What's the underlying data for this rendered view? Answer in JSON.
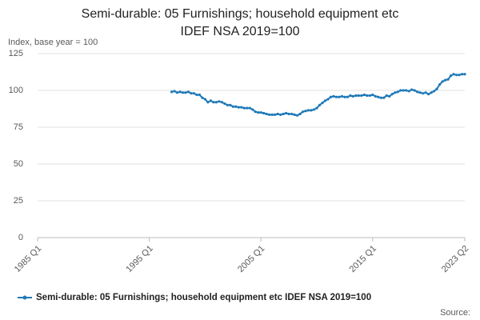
{
  "chart_data": {
    "type": "line",
    "title": [
      "Semi-durable: 05 Furnishings; household equipment etc",
      "IDEF NSA 2019=100"
    ],
    "y_label": "Index, base year = 100",
    "source": "Source:",
    "categories": [
      "1985 Q1",
      null,
      null,
      null,
      null,
      null,
      null,
      null,
      null,
      null,
      null,
      null,
      null,
      null,
      null,
      null,
      null,
      null,
      null,
      null,
      null,
      null,
      null,
      null,
      null,
      null,
      null,
      null,
      null,
      null,
      null,
      null,
      null,
      null,
      null,
      null,
      null,
      null,
      null,
      null,
      "1995 Q1",
      null,
      null,
      null,
      null,
      null,
      null,
      null,
      null,
      null,
      null,
      null,
      null,
      null,
      null,
      null,
      null,
      null,
      null,
      null,
      null,
      null,
      null,
      null,
      null,
      null,
      null,
      null,
      null,
      null,
      null,
      null,
      null,
      null,
      null,
      null,
      null,
      null,
      null,
      null,
      "2005 Q1",
      null,
      null,
      null,
      null,
      null,
      null,
      null,
      null,
      null,
      null,
      null,
      null,
      null,
      null,
      null,
      null,
      null,
      null,
      null,
      null,
      null,
      null,
      null,
      null,
      null,
      null,
      null,
      null,
      null,
      null,
      null,
      null,
      null,
      null,
      null,
      null,
      null,
      null,
      null,
      "2015 Q1",
      null,
      null,
      null,
      null,
      null,
      null,
      null,
      null,
      null,
      null,
      null,
      null,
      null,
      null,
      null,
      null,
      null,
      null,
      null,
      null,
      null,
      null,
      null,
      null,
      null,
      null,
      null,
      null,
      null,
      null,
      null,
      null,
      "2023 Q2"
    ],
    "series": [
      {
        "name": "Semi-durable: 05 Furnishings; household equipment etc IDEF NSA 2019=100",
        "color": "#1f7ab8",
        "values": [
          null,
          null,
          null,
          null,
          null,
          null,
          null,
          null,
          null,
          null,
          null,
          null,
          null,
          null,
          null,
          null,
          null,
          null,
          null,
          null,
          null,
          null,
          null,
          null,
          null,
          null,
          null,
          null,
          null,
          null,
          null,
          null,
          null,
          null,
          null,
          null,
          null,
          null,
          null,
          null,
          null,
          null,
          null,
          null,
          null,
          null,
          null,
          null,
          99,
          99.5,
          98.5,
          99,
          98.5,
          98.5,
          99,
          98,
          98,
          97,
          97,
          95,
          94,
          92,
          93,
          92,
          92,
          92.5,
          92,
          91,
          90,
          90,
          89,
          89,
          88.5,
          88.5,
          88,
          88,
          88,
          87,
          85.5,
          85,
          85,
          84.5,
          84,
          83.5,
          83.5,
          83.5,
          84,
          83.5,
          84,
          84.5,
          84,
          84,
          83.5,
          83,
          84,
          85.5,
          86,
          86.5,
          86.5,
          87,
          88,
          90,
          91.5,
          93,
          94,
          95.5,
          96,
          95.5,
          95.5,
          96,
          95.5,
          95.5,
          96.5,
          96,
          96.5,
          96.5,
          96.5,
          97,
          96.5,
          96.5,
          97,
          96,
          95.5,
          95,
          95,
          96.5,
          96,
          97.5,
          98.5,
          99,
          100,
          100,
          100,
          99.5,
          100.5,
          100,
          99,
          98.5,
          98,
          98.5,
          97.5,
          98.5,
          99.5,
          101,
          104,
          106,
          107,
          107.5,
          110,
          111,
          110.5,
          110.5,
          111,
          111
        ]
      }
    ],
    "ylim": [
      0,
      125
    ],
    "yticks": [
      0,
      25,
      50,
      75,
      100,
      125
    ],
    "grid": true
  }
}
